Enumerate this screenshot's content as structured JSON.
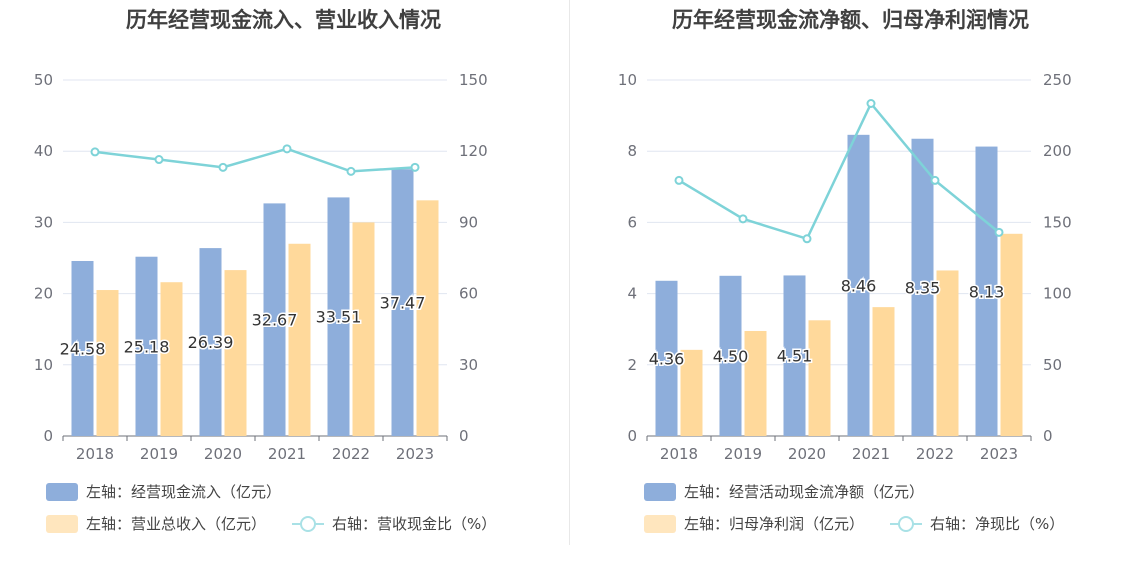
{
  "chart_data": [
    {
      "type": "bar",
      "title": "历年经营现金流入、营业收入情况",
      "categories": [
        "2018",
        "2019",
        "2020",
        "2021",
        "2022",
        "2023"
      ],
      "left_axis": {
        "ylim": [
          0,
          50
        ],
        "ticks": [
          "0",
          "10",
          "20",
          "30",
          "40",
          "50"
        ]
      },
      "right_axis": {
        "ylim": [
          0,
          150
        ],
        "ticks": [
          "0",
          "30",
          "60",
          "90",
          "120",
          "150"
        ]
      },
      "series": [
        {
          "name": "左轴：经营现金流入（亿元）",
          "axis": "left",
          "kind": "bar",
          "color": "#8eaedb",
          "values": [
            24.58,
            25.18,
            26.39,
            32.67,
            33.51,
            37.47
          ],
          "labels": [
            "24.58",
            "25.18",
            "26.39",
            "32.67",
            "33.51",
            "37.47"
          ]
        },
        {
          "name": "左轴：营业总收入（亿元）",
          "axis": "left",
          "kind": "bar",
          "color": "#ffd99b",
          "values": [
            20.5,
            21.6,
            23.3,
            27.0,
            30.0,
            33.1
          ]
        },
        {
          "name": "右轴：营收现金比（%）",
          "axis": "right",
          "kind": "line",
          "color": "#7ed3d8",
          "values": [
            119.7,
            116.5,
            113.2,
            121.0,
            111.5,
            113.2
          ]
        }
      ],
      "grid": true,
      "legend_position": "bottom"
    },
    {
      "type": "bar",
      "title": "历年经营现金流净额、归母净利润情况",
      "categories": [
        "2018",
        "2019",
        "2020",
        "2021",
        "2022",
        "2023"
      ],
      "left_axis": {
        "ylim": [
          0,
          10
        ],
        "ticks": [
          "0",
          "2",
          "4",
          "6",
          "8",
          "10"
        ]
      },
      "right_axis": {
        "ylim": [
          0,
          250
        ],
        "ticks": [
          "0",
          "50",
          "100",
          "150",
          "200",
          "250"
        ]
      },
      "series": [
        {
          "name": "左轴：经营活动现金流净额（亿元）",
          "axis": "left",
          "kind": "bar",
          "color": "#8eaedb",
          "values": [
            4.36,
            4.5,
            4.51,
            8.46,
            8.35,
            8.13
          ],
          "labels": [
            "4.36",
            "4.50",
            "4.51",
            "8.46",
            "8.35",
            "8.13"
          ]
        },
        {
          "name": "左轴：归母净利润（亿元）",
          "axis": "left",
          "kind": "bar",
          "color": "#ffd99b",
          "values": [
            2.42,
            2.95,
            3.25,
            3.62,
            4.65,
            5.68
          ]
        },
        {
          "name": "右轴：净现比（%）",
          "axis": "right",
          "kind": "line",
          "color": "#7ed3d8",
          "values": [
            179.5,
            152.5,
            138.5,
            233.5,
            179.5,
            143.0
          ]
        }
      ],
      "grid": true,
      "legend_position": "bottom"
    }
  ]
}
